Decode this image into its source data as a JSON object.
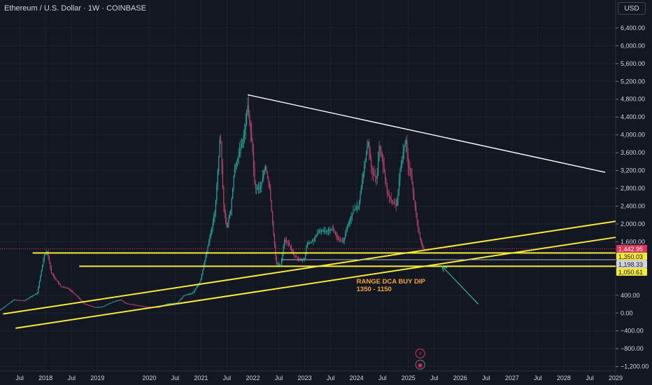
{
  "header": {
    "title": "Ethereum / U.S. Dollar · 1W · COINBASE"
  },
  "currency_button": {
    "label": "USD"
  },
  "colors": {
    "background": "#131722",
    "grid": "#1e222d",
    "bull": "#26a69a",
    "bear": "#b5446b",
    "support_line": "#f5e93a",
    "trend_line": "#ffffff",
    "arrow": "#2fd3a8",
    "annotation": "#f5a623",
    "price_badge": "#e0345a"
  },
  "chart_data": {
    "type": "candlestick",
    "x_ticks": [
      "Jul",
      "2018",
      "Jul",
      "2019",
      "2020",
      "Jul",
      "2021",
      "Jul",
      "2022",
      "Jul",
      "2023",
      "Jul",
      "2024",
      "Jul",
      "2025",
      "Jul",
      "2026",
      "Jul",
      "2027",
      "Jul",
      "2028",
      "Jul",
      "2029"
    ],
    "x_tick_dates": [
      2017.5,
      2018.0,
      2018.5,
      2019.0,
      2020.0,
      2020.5,
      2021.0,
      2021.5,
      2022.0,
      2022.5,
      2023.0,
      2023.5,
      2024.0,
      2024.5,
      2025.0,
      2025.5,
      2026.0,
      2026.5,
      2027.0,
      2027.5,
      2028.0,
      2028.5,
      2029.0
    ],
    "y_ticks": [
      6400,
      6000,
      5600,
      5200,
      4800,
      4400,
      4000,
      3600,
      3200,
      2800,
      2400,
      2000,
      1600,
      400,
      0,
      -400,
      -800,
      -1200
    ],
    "y_tick_labels": [
      "6,400.00",
      "6,000.00",
      "5,600.00",
      "5,200.00",
      "4,800.00",
      "4,400.00",
      "4,000.00",
      "3,600.00",
      "3,200.00",
      "2,800.00",
      "2,400.00",
      "2,000.00",
      "1,600.00",
      "400.00",
      "0.00",
      "−400.00",
      "−800.00",
      "−1,200.00"
    ],
    "ylim": [
      -1300,
      6650
    ],
    "xlim": [
      2017.12,
      2029.0
    ],
    "price_path": [
      [
        2017.12,
        60
      ],
      [
        2017.4,
        300
      ],
      [
        2017.6,
        280
      ],
      [
        2017.85,
        450
      ],
      [
        2017.98,
        1300
      ],
      [
        2018.04,
        1400
      ],
      [
        2018.12,
        900
      ],
      [
        2018.3,
        600
      ],
      [
        2018.45,
        550
      ],
      [
        2018.6,
        400
      ],
      [
        2018.75,
        210
      ],
      [
        2018.95,
        130
      ],
      [
        2019.1,
        140
      ],
      [
        2019.3,
        250
      ],
      [
        2019.45,
        300
      ],
      [
        2019.55,
        220
      ],
      [
        2019.75,
        180
      ],
      [
        2019.95,
        140
      ],
      [
        2020.2,
        130
      ],
      [
        2020.35,
        210
      ],
      [
        2020.55,
        230
      ],
      [
        2020.68,
        400
      ],
      [
        2020.85,
        450
      ],
      [
        2021.0,
        730
      ],
      [
        2021.1,
        1300
      ],
      [
        2021.2,
        1800
      ],
      [
        2021.28,
        2300
      ],
      [
        2021.35,
        3500
      ],
      [
        2021.38,
        4100
      ],
      [
        2021.44,
        2500
      ],
      [
        2021.5,
        1900
      ],
      [
        2021.58,
        2300
      ],
      [
        2021.65,
        3200
      ],
      [
        2021.72,
        3500
      ],
      [
        2021.8,
        3800
      ],
      [
        2021.88,
        4300
      ],
      [
        2021.9,
        4750
      ],
      [
        2022.0,
        3700
      ],
      [
        2022.05,
        2800
      ],
      [
        2022.15,
        2800
      ],
      [
        2022.25,
        3300
      ],
      [
        2022.33,
        2800
      ],
      [
        2022.4,
        1900
      ],
      [
        2022.46,
        1100
      ],
      [
        2022.55,
        1100
      ],
      [
        2022.62,
        1650
      ],
      [
        2022.7,
        1550
      ],
      [
        2022.8,
        1300
      ],
      [
        2022.85,
        1250
      ],
      [
        2022.92,
        1180
      ],
      [
        2023.0,
        1200
      ],
      [
        2023.05,
        1550
      ],
      [
        2023.15,
        1600
      ],
      [
        2023.3,
        1850
      ],
      [
        2023.45,
        1850
      ],
      [
        2023.55,
        1900
      ],
      [
        2023.65,
        1650
      ],
      [
        2023.75,
        1600
      ],
      [
        2023.85,
        2000
      ],
      [
        2023.95,
        2300
      ],
      [
        2024.05,
        2400
      ],
      [
        2024.12,
        3000
      ],
      [
        2024.2,
        3600
      ],
      [
        2024.23,
        3900
      ],
      [
        2024.3,
        3200
      ],
      [
        2024.4,
        3000
      ],
      [
        2024.45,
        3800
      ],
      [
        2024.5,
        3500
      ],
      [
        2024.6,
        2700
      ],
      [
        2024.7,
        2500
      ],
      [
        2024.78,
        2400
      ],
      [
        2024.85,
        3200
      ],
      [
        2024.92,
        3700
      ],
      [
        2024.97,
        3900
      ],
      [
        2025.0,
        3300
      ],
      [
        2025.05,
        3200
      ],
      [
        2025.1,
        2700
      ],
      [
        2025.15,
        2300
      ],
      [
        2025.2,
        1900
      ],
      [
        2025.25,
        1600
      ],
      [
        2025.28,
        1450
      ],
      [
        2025.3,
        1442.95
      ]
    ],
    "trend_lines": [
      {
        "name": "descending-resistance",
        "color": "#ffffff",
        "from": [
          2021.9,
          4900
        ],
        "to": [
          2028.8,
          3160
        ]
      }
    ],
    "support_lines": [
      {
        "name": "ascending-support-upper",
        "from": [
          2017.18,
          -20
        ],
        "to": [
          2029.0,
          2060
        ]
      },
      {
        "name": "ascending-support-lower",
        "from": [
          2017.42,
          -340
        ],
        "to": [
          2029.0,
          1700
        ]
      },
      {
        "name": "horizontal-upper",
        "from": [
          2017.75,
          1350.03
        ],
        "to": [
          2029.0,
          1350.03
        ]
      },
      {
        "name": "horizontal-lower",
        "from": [
          2018.65,
          1050.61
        ],
        "to": [
          2029.0,
          1050.61
        ]
      }
    ],
    "gray_segment": {
      "from": [
        2022.55,
        1198.33
      ],
      "to": [
        2029.0,
        1198.33
      ]
    },
    "current_price_line": 1442.95,
    "price_badges": [
      {
        "label": "1,442.95",
        "value": 1442.95,
        "bg": "#e0345a",
        "fg": "#ffffff"
      },
      {
        "label": "1,350.03",
        "value": 1350.03,
        "bg": "#f5e93a",
        "fg": "#131722"
      },
      {
        "label": "1,198.33",
        "value": 1198.33,
        "bg": "#d1d4dc",
        "fg": "#131722"
      },
      {
        "label": "1,050.61",
        "value": 1050.61,
        "bg": "#f5e93a",
        "fg": "#131722"
      }
    ],
    "annotation": {
      "lines": [
        "RANGE DCA BUY DIP",
        "1350 - 1150"
      ],
      "anchor": [
        2024.0,
        600
      ],
      "color": "#f5a623"
    },
    "arrow": {
      "from": [
        2026.35,
        200
      ],
      "to": [
        2025.65,
        1050
      ]
    },
    "event_markers": [
      {
        "name": "lightning-icon",
        "date": 2025.23,
        "glyph": "⚡"
      },
      {
        "name": "calendar-icon",
        "date": 2025.23,
        "glyph": "◉"
      }
    ]
  }
}
